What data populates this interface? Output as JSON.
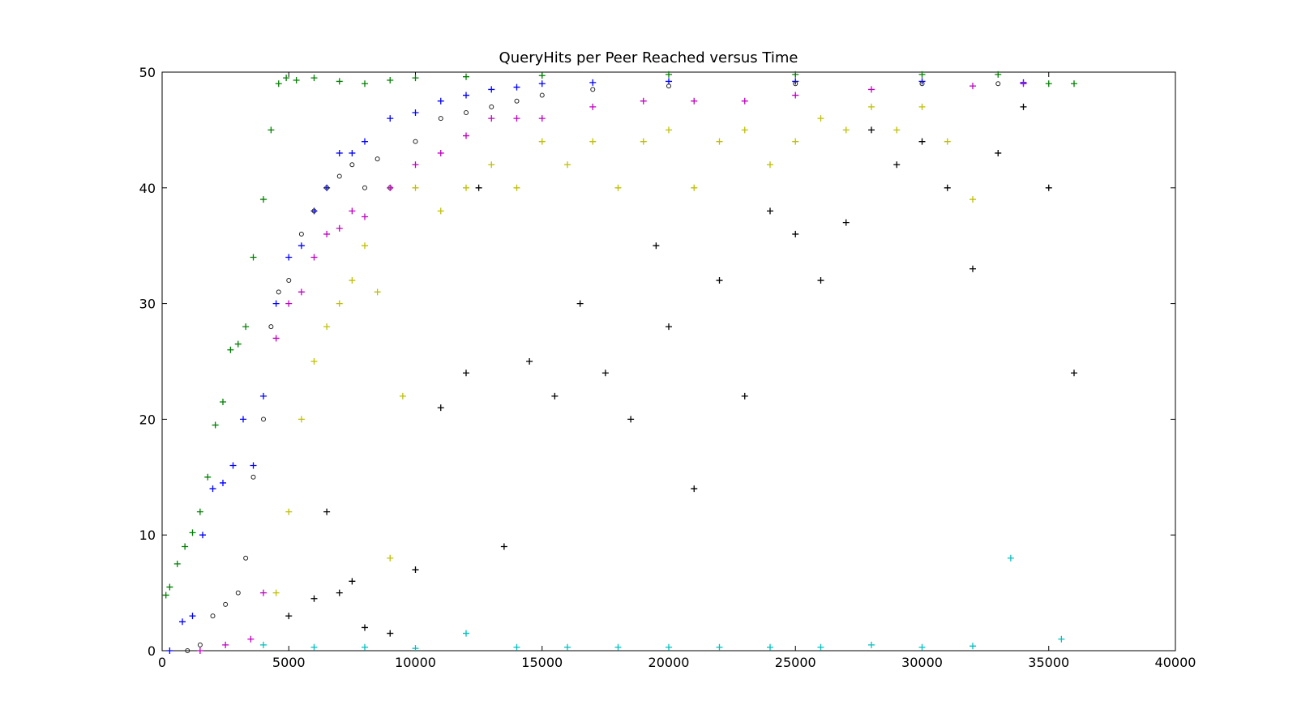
{
  "chart_data": {
    "type": "scatter",
    "title": "QueryHits per Peer Reached versus Time",
    "xlabel": "",
    "ylabel": "",
    "xlim": [
      0,
      40000
    ],
    "ylim": [
      0,
      50
    ],
    "x_ticks": [
      "0",
      "5000",
      "10000",
      "15000",
      "20000",
      "25000",
      "30000",
      "35000",
      "40000"
    ],
    "y_ticks": [
      "0",
      "10",
      "20",
      "30",
      "40",
      "50"
    ],
    "grid": false,
    "legend": "none",
    "series": [
      {
        "color": "#008000",
        "marker": "plus",
        "x": [
          150,
          300,
          600,
          900,
          1200,
          1500,
          1800,
          2100,
          2400,
          2700,
          3000,
          3300,
          3600,
          4000,
          4300,
          4600,
          4900,
          5300,
          6000,
          7000,
          8000,
          9000,
          10000,
          12000,
          15000,
          20000,
          25000,
          30000,
          33000,
          35000,
          36000
        ],
        "y": [
          4.8,
          5.5,
          7.5,
          9.0,
          10.2,
          12.0,
          15.0,
          19.5,
          21.5,
          26.0,
          26.5,
          28.0,
          34.0,
          39.0,
          45.0,
          49.0,
          49.5,
          49.3,
          49.5,
          49.2,
          49.0,
          49.3,
          49.5,
          49.6,
          49.7,
          49.8,
          49.8,
          49.8,
          49.8,
          49.0,
          49.0
        ]
      },
      {
        "color": "#0000ff",
        "marker": "plus",
        "x": [
          300,
          800,
          1200,
          1600,
          2000,
          2400,
          2800,
          3200,
          3600,
          4000,
          4500,
          5000,
          5500,
          6000,
          6500,
          7000,
          7500,
          8000,
          9000,
          10000,
          11000,
          12000,
          13000,
          14000,
          15000,
          17000,
          20000,
          25000,
          30000,
          34000
        ],
        "y": [
          0.0,
          2.5,
          3.0,
          10.0,
          14.0,
          14.5,
          16.0,
          20.0,
          16.0,
          22.0,
          30.0,
          34.0,
          35.0,
          38.0,
          40.0,
          43.0,
          43.0,
          44.0,
          46.0,
          46.5,
          47.5,
          48.0,
          48.5,
          48.7,
          49.0,
          49.1,
          49.2,
          49.2,
          49.2,
          49.1
        ]
      },
      {
        "color": "#222222",
        "marker": "circle",
        "x": [
          1000,
          1500,
          2000,
          2500,
          3000,
          3300,
          3600,
          4000,
          4300,
          4600,
          5000,
          5500,
          6000,
          6500,
          7000,
          7500,
          8000,
          8500,
          9000,
          10000,
          11000,
          12000,
          13000,
          14000,
          15000,
          17000,
          20000,
          25000,
          30000,
          33000
        ],
        "y": [
          0.0,
          0.5,
          3.0,
          4.0,
          5.0,
          8.0,
          15.0,
          20.0,
          28.0,
          31.0,
          32.0,
          36.0,
          38.0,
          40.0,
          41.0,
          42.0,
          40.0,
          42.5,
          40.0,
          44.0,
          46.0,
          46.5,
          47.0,
          47.5,
          48.0,
          48.5,
          48.8,
          49.0,
          49.0,
          49.0
        ]
      },
      {
        "color": "#bf00bf",
        "marker": "plus",
        "x": [
          1500,
          2500,
          3500,
          4000,
          4500,
          5000,
          5500,
          6000,
          6500,
          7000,
          7500,
          8000,
          9000,
          10000,
          11000,
          12000,
          13000,
          14000,
          15000,
          17000,
          19000,
          21000,
          23000,
          25000,
          28000,
          32000,
          34000
        ],
        "y": [
          0.0,
          0.5,
          1.0,
          5.0,
          27.0,
          30.0,
          31.0,
          34.0,
          36.0,
          36.5,
          38.0,
          37.5,
          40.0,
          42.0,
          43.0,
          44.5,
          46.0,
          46.0,
          46.0,
          47.0,
          47.5,
          47.5,
          47.5,
          48.0,
          48.5,
          48.8,
          49.0
        ]
      },
      {
        "color": "#bfbf00",
        "marker": "plus",
        "x": [
          4500,
          5000,
          5500,
          6000,
          6500,
          7000,
          7500,
          8000,
          8500,
          9000,
          9500,
          10000,
          11000,
          12000,
          13000,
          14000,
          15000,
          16000,
          17000,
          18000,
          19000,
          20000,
          21000,
          22000,
          23000,
          24000,
          25000,
          26000,
          27000,
          28000,
          29000,
          30000,
          31000,
          32000
        ],
        "y": [
          5.0,
          12.0,
          20.0,
          25.0,
          28.0,
          30.0,
          32.0,
          35.0,
          31.0,
          8.0,
          22.0,
          40.0,
          38.0,
          40.0,
          42.0,
          40.0,
          44.0,
          42.0,
          44.0,
          40.0,
          44.0,
          45.0,
          40.0,
          44.0,
          45.0,
          42.0,
          44.0,
          46.0,
          45.0,
          47.0,
          45.0,
          47.0,
          44.0,
          39.0
        ]
      },
      {
        "color": "#000000",
        "marker": "plus",
        "x": [
          5000,
          6000,
          6500,
          7000,
          7500,
          8000,
          9000,
          10000,
          11000,
          12000,
          12500,
          13500,
          14500,
          15500,
          16500,
          17500,
          18500,
          19500,
          20000,
          21000,
          22000,
          23000,
          24000,
          25000,
          26000,
          27000,
          28000,
          29000,
          30000,
          31000,
          32000,
          33000,
          34000,
          35000,
          36000
        ],
        "y": [
          3.0,
          4.5,
          12.0,
          5.0,
          6.0,
          2.0,
          1.5,
          7.0,
          21.0,
          24.0,
          40.0,
          9.0,
          25.0,
          22.0,
          30.0,
          24.0,
          20.0,
          35.0,
          28.0,
          14.0,
          32.0,
          22.0,
          38.0,
          36.0,
          32.0,
          37.0,
          45.0,
          42.0,
          44.0,
          40.0,
          33.0,
          43.0,
          47.0,
          40.0,
          24.0
        ]
      },
      {
        "color": "#00bfbf",
        "marker": "plus",
        "x": [
          4000,
          6000,
          8000,
          10000,
          12000,
          14000,
          16000,
          18000,
          20000,
          22000,
          24000,
          26000,
          28000,
          30000,
          32000,
          33500,
          35500
        ],
        "y": [
          0.5,
          0.3,
          0.3,
          0.2,
          1.5,
          0.3,
          0.3,
          0.3,
          0.3,
          0.3,
          0.3,
          0.3,
          0.5,
          0.3,
          0.4,
          8.0,
          1.0
        ]
      }
    ]
  }
}
